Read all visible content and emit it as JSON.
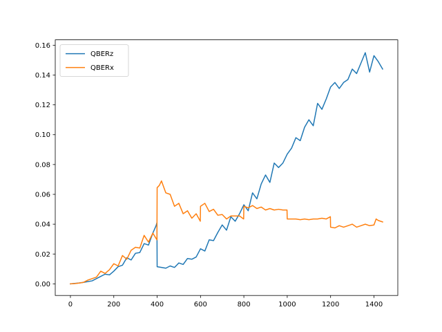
{
  "chart_data": {
    "type": "line",
    "xlim": [
      -70,
      1510
    ],
    "ylim": [
      -0.0078,
      0.1636
    ],
    "xticks": [
      0,
      200,
      400,
      600,
      800,
      1000,
      1200,
      1400
    ],
    "xtick_labels": [
      "0",
      "200",
      "400",
      "600",
      "800",
      "1000",
      "1200",
      "1400"
    ],
    "yticks": [
      0.0,
      0.02,
      0.04,
      0.06,
      0.08,
      0.1,
      0.12,
      0.14,
      0.16
    ],
    "ytick_labels": [
      "0.00",
      "0.02",
      "0.04",
      "0.06",
      "0.08",
      "0.10",
      "0.12",
      "0.14",
      "0.16"
    ],
    "grid": false,
    "legend_position": "top-left",
    "series": [
      {
        "name": "QBERz",
        "color": "#1f77b4",
        "x": [
          0,
          20,
          40,
          60,
          80,
          100,
          120,
          140,
          160,
          180,
          200,
          220,
          240,
          260,
          280,
          300,
          320,
          340,
          360,
          380,
          395,
          399,
          400,
          420,
          440,
          460,
          480,
          500,
          520,
          540,
          560,
          580,
          600,
          620,
          640,
          660,
          680,
          700,
          720,
          740,
          760,
          780,
          800,
          820,
          840,
          860,
          880,
          900,
          920,
          940,
          960,
          980,
          1000,
          1020,
          1040,
          1060,
          1080,
          1100,
          1120,
          1140,
          1160,
          1180,
          1200,
          1220,
          1240,
          1260,
          1280,
          1300,
          1320,
          1340,
          1360,
          1380,
          1400,
          1420,
          1440
        ],
        "y": [
          0.0,
          0.0003,
          0.0006,
          0.001,
          0.0015,
          0.002,
          0.0035,
          0.005,
          0.0065,
          0.006,
          0.0085,
          0.0115,
          0.0125,
          0.0175,
          0.016,
          0.0205,
          0.021,
          0.027,
          0.026,
          0.034,
          0.039,
          0.041,
          0.0115,
          0.011,
          0.0105,
          0.012,
          0.011,
          0.014,
          0.013,
          0.017,
          0.0165,
          0.018,
          0.0235,
          0.022,
          0.0295,
          0.029,
          0.0345,
          0.0395,
          0.036,
          0.045,
          0.042,
          0.047,
          0.053,
          0.049,
          0.061,
          0.057,
          0.067,
          0.073,
          0.068,
          0.081,
          0.078,
          0.081,
          0.087,
          0.091,
          0.098,
          0.096,
          0.105,
          0.11,
          0.106,
          0.121,
          0.117,
          0.124,
          0.132,
          0.135,
          0.131,
          0.135,
          0.137,
          0.144,
          0.141,
          0.148,
          0.155,
          0.142,
          0.153,
          0.149,
          0.144
        ]
      },
      {
        "name": "QBERx",
        "color": "#ff7f0e",
        "x": [
          0,
          20,
          40,
          60,
          80,
          100,
          120,
          140,
          160,
          180,
          200,
          220,
          240,
          260,
          280,
          300,
          320,
          340,
          360,
          380,
          399,
          400,
          410,
          420,
          440,
          460,
          480,
          500,
          520,
          540,
          560,
          580,
          599,
          600,
          620,
          640,
          660,
          680,
          700,
          720,
          740,
          760,
          780,
          799,
          800,
          820,
          840,
          860,
          880,
          900,
          920,
          940,
          960,
          980,
          999,
          1000,
          1020,
          1040,
          1060,
          1080,
          1100,
          1120,
          1140,
          1160,
          1180,
          1199,
          1200,
          1220,
          1240,
          1260,
          1280,
          1300,
          1320,
          1340,
          1360,
          1380,
          1400,
          1410,
          1420,
          1440
        ],
        "y": [
          0.0,
          0.0002,
          0.0005,
          0.001,
          0.0025,
          0.0035,
          0.0045,
          0.0085,
          0.007,
          0.0095,
          0.0135,
          0.012,
          0.019,
          0.0165,
          0.0225,
          0.0245,
          0.024,
          0.0325,
          0.028,
          0.034,
          0.0295,
          0.0645,
          0.066,
          0.069,
          0.061,
          0.06,
          0.052,
          0.054,
          0.047,
          0.049,
          0.044,
          0.047,
          0.042,
          0.052,
          0.054,
          0.0485,
          0.05,
          0.046,
          0.0465,
          0.0435,
          0.0455,
          0.0455,
          0.0455,
          0.0435,
          0.052,
          0.051,
          0.0525,
          0.0505,
          0.0515,
          0.0495,
          0.0505,
          0.0495,
          0.05,
          0.0495,
          0.0495,
          0.0435,
          0.0435,
          0.0435,
          0.043,
          0.0435,
          0.043,
          0.0435,
          0.0435,
          0.044,
          0.0435,
          0.045,
          0.038,
          0.0375,
          0.039,
          0.038,
          0.039,
          0.04,
          0.038,
          0.039,
          0.04,
          0.039,
          0.0395,
          0.0435,
          0.0425,
          0.0415
        ]
      }
    ]
  }
}
